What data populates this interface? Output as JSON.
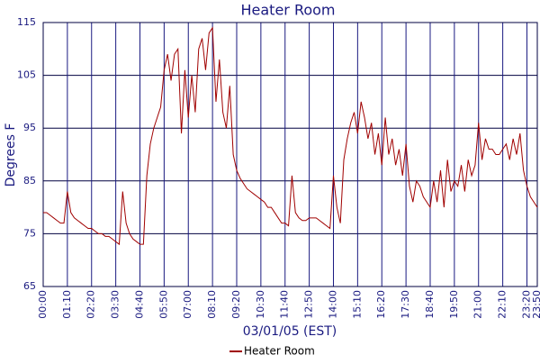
{
  "chart_data": {
    "type": "line",
    "title": "Heater Room",
    "x_label": "03/01/05 (EST)",
    "y_label": "Degrees F",
    "categories": [
      "00:00",
      null,
      null,
      null,
      null,
      null,
      null,
      "01:10",
      null,
      null,
      null,
      null,
      null,
      null,
      "02:20",
      null,
      null,
      null,
      null,
      null,
      null,
      "03:30",
      null,
      null,
      null,
      null,
      null,
      null,
      "04:40",
      null,
      null,
      null,
      null,
      null,
      null,
      "05:50",
      null,
      null,
      null,
      null,
      null,
      null,
      "07:00",
      null,
      null,
      null,
      null,
      null,
      null,
      "08:10",
      null,
      null,
      null,
      null,
      null,
      null,
      "09:20",
      null,
      null,
      null,
      null,
      null,
      null,
      "10:30",
      null,
      null,
      null,
      null,
      null,
      null,
      "11:40",
      null,
      null,
      null,
      null,
      null,
      null,
      "12:50",
      null,
      null,
      null,
      null,
      null,
      null,
      "14:00",
      null,
      null,
      null,
      null,
      null,
      null,
      "15:10",
      null,
      null,
      null,
      null,
      null,
      null,
      "16:20",
      null,
      null,
      null,
      null,
      null,
      null,
      "17:30",
      null,
      null,
      null,
      null,
      null,
      null,
      "18:40",
      null,
      null,
      null,
      null,
      null,
      null,
      "19:50",
      null,
      null,
      null,
      null,
      null,
      null,
      "21:00",
      null,
      null,
      null,
      null,
      null,
      null,
      "22:10",
      null,
      null,
      null,
      null,
      null,
      null,
      "23:20",
      null,
      null,
      "23:50"
    ],
    "series": [
      {
        "name": "Heater Room",
        "color": "#a00000",
        "values": [
          79,
          79,
          78.5,
          78,
          77.5,
          77,
          77,
          83,
          79,
          78,
          77.5,
          77,
          76.5,
          76,
          76,
          75.5,
          75,
          75,
          74.5,
          74.5,
          74,
          73.5,
          73,
          83,
          77,
          75,
          74,
          73.5,
          73,
          73,
          86,
          92,
          95,
          97,
          99,
          106,
          109,
          104,
          109,
          110,
          94,
          106,
          97,
          105,
          98,
          110,
          112,
          106,
          113,
          114,
          100,
          108,
          98,
          95,
          103,
          90,
          87,
          85.5,
          84.5,
          83.5,
          83,
          82.5,
          82,
          81.5,
          81,
          80,
          80,
          79,
          78,
          77,
          77,
          76.5,
          86,
          79,
          78,
          77.5,
          77.5,
          78,
          78,
          78,
          77.5,
          77,
          76.5,
          76,
          86,
          80,
          77,
          89,
          93,
          96,
          98,
          94,
          100,
          97,
          93,
          96,
          90,
          94,
          88,
          97,
          90,
          93,
          88,
          91,
          86,
          92,
          84,
          81,
          85,
          84,
          82,
          81,
          80,
          85,
          81,
          87,
          80,
          89,
          83,
          85,
          84,
          88,
          83,
          89,
          86,
          88,
          96,
          89,
          93,
          91,
          91,
          90,
          90,
          91,
          92,
          89,
          93,
          90,
          94,
          87,
          84,
          82,
          81,
          80
        ]
      }
    ],
    "ylim": [
      65,
      115
    ],
    "yticks": [
      65,
      75,
      85,
      95,
      105,
      115
    ],
    "grid": true,
    "legend": "bottom"
  }
}
